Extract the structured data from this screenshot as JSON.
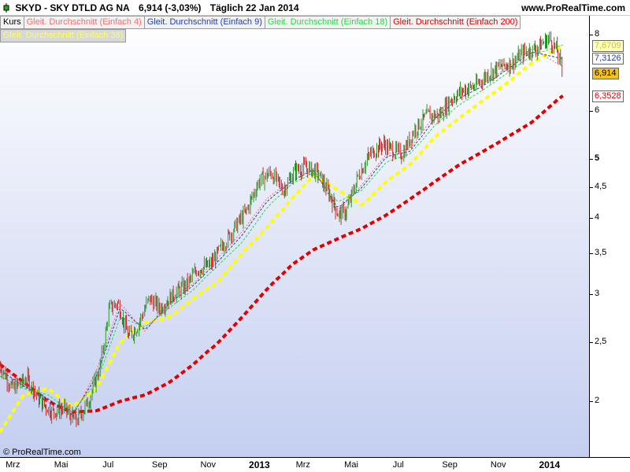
{
  "header": {
    "ticker": "SKYD - SKY DTLD AG NA",
    "price_change": "6,914 (-3,03%)",
    "period": "Täglich  22 Jan 2014",
    "site": "www.ProRealTime.com"
  },
  "legend": {
    "items": [
      {
        "label": "Kurs",
        "color": "#000000"
      },
      {
        "label": "Gleit. Durchschnitt (Einfach 4)",
        "color": "#ff6a6a"
      },
      {
        "label": "Gleit. Durchschnitt (Einfach 9)",
        "color": "#1f3fb0"
      },
      {
        "label": "Gleit. Durchschnitt (Einfach 18)",
        "color": "#22dd44"
      },
      {
        "label": "Gleit. Durchschnitt (Einfach 200)",
        "color": "#e00000"
      },
      {
        "label": "Gleit. Durchschnitt (Einfach 38)",
        "color": "#ffff00"
      }
    ]
  },
  "copyright": "© ProRealTime.com",
  "price_boxes": [
    {
      "label": "7,6709",
      "value": 7.6709,
      "bg": "#ffffcc",
      "fg": "#cccc00"
    },
    {
      "label": "7,3126",
      "value": 7.3126,
      "bg": "#ffffff",
      "fg": "#1f3fb0"
    },
    {
      "label": "6,914",
      "value": 6.914,
      "bg": "#f3c318",
      "fg": "#000000"
    },
    {
      "label": "6,3528",
      "value": 6.3528,
      "bg": "#ffffff",
      "fg": "#e00000"
    }
  ],
  "chart_data": {
    "type": "line",
    "yscale": "log",
    "ylim": [
      1.62,
      8.6
    ],
    "y_ticks": [
      {
        "label": "8",
        "value": 8
      },
      {
        "label": "6",
        "value": 6
      },
      {
        "label": "5",
        "value": 5
      },
      {
        "label": "4,5",
        "value": 4.5
      },
      {
        "label": "4",
        "value": 4
      },
      {
        "label": "3,5",
        "value": 3.5
      },
      {
        "label": "3",
        "value": 3
      },
      {
        "label": "2,5",
        "value": 2.5
      },
      {
        "label": "2",
        "value": 2
      }
    ],
    "x_ticks": [
      {
        "label": "Mrz",
        "date": "2012-03-01",
        "bold": false
      },
      {
        "label": "Mai",
        "date": "2012-05-01",
        "bold": false
      },
      {
        "label": "Jul",
        "date": "2012-07-01",
        "bold": false
      },
      {
        "label": "Sep",
        "date": "2012-09-01",
        "bold": false
      },
      {
        "label": "Nov",
        "date": "2012-11-01",
        "bold": false
      },
      {
        "label": "2013",
        "date": "2013-01-01",
        "bold": true
      },
      {
        "label": "Mrz",
        "date": "2013-03-01",
        "bold": false
      },
      {
        "label": "Mai",
        "date": "2013-05-01",
        "bold": false
      },
      {
        "label": "Jul",
        "date": "2013-07-01",
        "bold": false
      },
      {
        "label": "Sep",
        "date": "2013-09-01",
        "bold": false
      },
      {
        "label": "Nov",
        "date": "2013-11-01",
        "bold": false
      },
      {
        "label": "2014",
        "date": "2014-01-01",
        "bold": true
      }
    ],
    "xlim": [
      "2012-02-14",
      "2014-02-24"
    ],
    "price": {
      "name": "Kurs",
      "x": [
        "2012-02-14",
        "2012-03-01",
        "2012-03-20",
        "2012-04-05",
        "2012-04-20",
        "2012-05-05",
        "2012-05-20",
        "2012-06-05",
        "2012-06-20",
        "2012-07-01",
        "2012-07-12",
        "2012-07-25",
        "2012-08-05",
        "2012-08-20",
        "2012-09-03",
        "2012-09-20",
        "2012-10-05",
        "2012-10-20",
        "2012-11-05",
        "2012-11-20",
        "2012-12-05",
        "2012-12-20",
        "2013-01-05",
        "2013-01-20",
        "2013-02-05",
        "2013-02-20",
        "2013-03-05",
        "2013-03-20",
        "2013-04-05",
        "2013-04-15",
        "2013-04-25",
        "2013-05-10",
        "2013-05-25",
        "2013-06-10",
        "2013-06-25",
        "2013-07-05",
        "2013-07-20",
        "2013-08-05",
        "2013-08-20",
        "2013-09-05",
        "2013-09-20",
        "2013-10-05",
        "2013-10-20",
        "2013-11-05",
        "2013-11-20",
        "2013-12-05",
        "2013-12-20",
        "2014-01-05",
        "2014-01-15",
        "2014-01-22"
      ],
      "y": [
        2.3,
        2.1,
        2.18,
        2.0,
        1.92,
        1.95,
        1.85,
        2.0,
        2.3,
        2.85,
        2.9,
        2.55,
        2.65,
        2.95,
        2.85,
        3.0,
        3.1,
        3.3,
        3.35,
        3.6,
        3.85,
        4.1,
        4.6,
        4.75,
        4.45,
        4.8,
        4.85,
        4.75,
        4.35,
        4.05,
        4.1,
        4.7,
        5.1,
        5.3,
        5.15,
        5.1,
        5.6,
        5.9,
        5.9,
        6.3,
        6.5,
        6.6,
        6.9,
        7.1,
        7.2,
        7.5,
        7.6,
        7.9,
        7.55,
        6.914
      ]
    },
    "series": [
      {
        "name": "Gleit. Durchschnitt (Einfach 200)",
        "color": "#e00000",
        "x": [
          "2012-02-14",
          "2012-03-15",
          "2012-04-15",
          "2012-05-15",
          "2012-06-15",
          "2012-07-15",
          "2012-08-15",
          "2012-09-15",
          "2012-10-15",
          "2012-11-15",
          "2012-12-15",
          "2013-01-15",
          "2013-02-15",
          "2013-03-15",
          "2013-04-15",
          "2013-05-15",
          "2013-06-15",
          "2013-07-15",
          "2013-08-15",
          "2013-09-15",
          "2013-10-15",
          "2013-11-15",
          "2013-12-15",
          "2014-01-22"
        ],
        "y": [
          2.3,
          2.15,
          2.0,
          1.92,
          1.93,
          2.0,
          2.05,
          2.15,
          2.3,
          2.5,
          2.75,
          3.05,
          3.35,
          3.55,
          3.7,
          3.85,
          4.05,
          4.3,
          4.6,
          4.9,
          5.15,
          5.45,
          5.75,
          6.3528
        ]
      },
      {
        "name": "Gleit. Durchschnitt (Einfach 38)",
        "color": "#ffff00",
        "x": [
          "2012-02-14",
          "2012-03-15",
          "2012-04-15",
          "2012-05-15",
          "2012-06-15",
          "2012-07-15",
          "2012-08-15",
          "2012-09-15",
          "2012-10-15",
          "2012-11-15",
          "2012-12-15",
          "2013-01-15",
          "2013-02-15",
          "2013-03-15",
          "2013-04-15",
          "2013-05-15",
          "2013-06-15",
          "2013-07-15",
          "2013-08-15",
          "2013-09-15",
          "2013-10-15",
          "2013-11-15",
          "2013-12-15",
          "2014-01-22"
        ],
        "y": [
          1.78,
          2.05,
          2.1,
          1.96,
          2.1,
          2.5,
          2.7,
          2.75,
          2.95,
          3.15,
          3.5,
          3.85,
          4.3,
          4.7,
          4.45,
          4.2,
          4.6,
          4.9,
          5.45,
          5.85,
          6.25,
          6.7,
          7.2,
          7.6709
        ]
      },
      {
        "name": "Gleit. Durchschnitt (Einfach 18)",
        "color": "#22dd44",
        "x": [
          "2012-02-14",
          "2012-03-15",
          "2012-04-15",
          "2012-05-15",
          "2012-06-15",
          "2012-07-15",
          "2012-08-15",
          "2012-09-15",
          "2012-10-15",
          "2012-11-15",
          "2012-12-15",
          "2013-01-15",
          "2013-02-15",
          "2013-03-15",
          "2013-04-15",
          "2013-05-15",
          "2013-06-15",
          "2013-07-15",
          "2013-08-15",
          "2013-09-15",
          "2013-10-15",
          "2013-11-15",
          "2013-12-15",
          "2014-01-22"
        ],
        "y": [
          2.2,
          2.1,
          2.05,
          1.92,
          2.15,
          2.75,
          2.65,
          2.85,
          3.05,
          3.35,
          3.65,
          4.15,
          4.55,
          4.75,
          4.25,
          4.45,
          4.95,
          5.1,
          5.7,
          6.15,
          6.5,
          6.95,
          7.4,
          7.7
        ]
      },
      {
        "name": "Gleit. Durchschnitt (Einfach 9)",
        "color": "#1f3fb0",
        "x": [
          "2012-02-14",
          "2012-03-15",
          "2012-04-15",
          "2012-05-15",
          "2012-06-15",
          "2012-07-15",
          "2012-08-15",
          "2012-09-15",
          "2012-10-15",
          "2012-11-15",
          "2012-12-15",
          "2013-01-15",
          "2013-02-15",
          "2013-03-15",
          "2013-04-15",
          "2013-05-15",
          "2013-06-15",
          "2013-07-15",
          "2013-08-15",
          "2013-09-15",
          "2013-10-15",
          "2013-11-15",
          "2013-12-15",
          "2014-01-22"
        ],
        "y": [
          2.25,
          2.12,
          2.02,
          1.9,
          2.2,
          2.85,
          2.62,
          2.9,
          3.1,
          3.4,
          3.75,
          4.25,
          4.6,
          4.8,
          4.15,
          4.5,
          5.05,
          5.15,
          5.85,
          6.3,
          6.6,
          7.05,
          7.5,
          7.3126
        ]
      },
      {
        "name": "Gleit. Durchschnitt (Einfach 4)",
        "color": "#ff6a6a",
        "x": [
          "2012-02-14",
          "2012-03-15",
          "2012-04-15",
          "2012-05-15",
          "2012-06-15",
          "2012-07-15",
          "2012-08-15",
          "2012-09-15",
          "2012-10-15",
          "2012-11-15",
          "2012-12-15",
          "2013-01-15",
          "2013-02-15",
          "2013-03-15",
          "2013-04-15",
          "2013-05-15",
          "2013-06-15",
          "2013-07-15",
          "2013-08-15",
          "2013-09-15",
          "2013-10-15",
          "2013-11-15",
          "2013-12-15",
          "2014-01-22"
        ],
        "y": [
          2.28,
          2.14,
          2.0,
          1.88,
          2.25,
          2.9,
          2.6,
          2.95,
          3.12,
          3.45,
          3.8,
          4.3,
          4.62,
          4.82,
          4.1,
          4.55,
          5.1,
          5.2,
          5.95,
          6.4,
          6.65,
          7.1,
          7.6,
          7.1
        ]
      }
    ]
  }
}
